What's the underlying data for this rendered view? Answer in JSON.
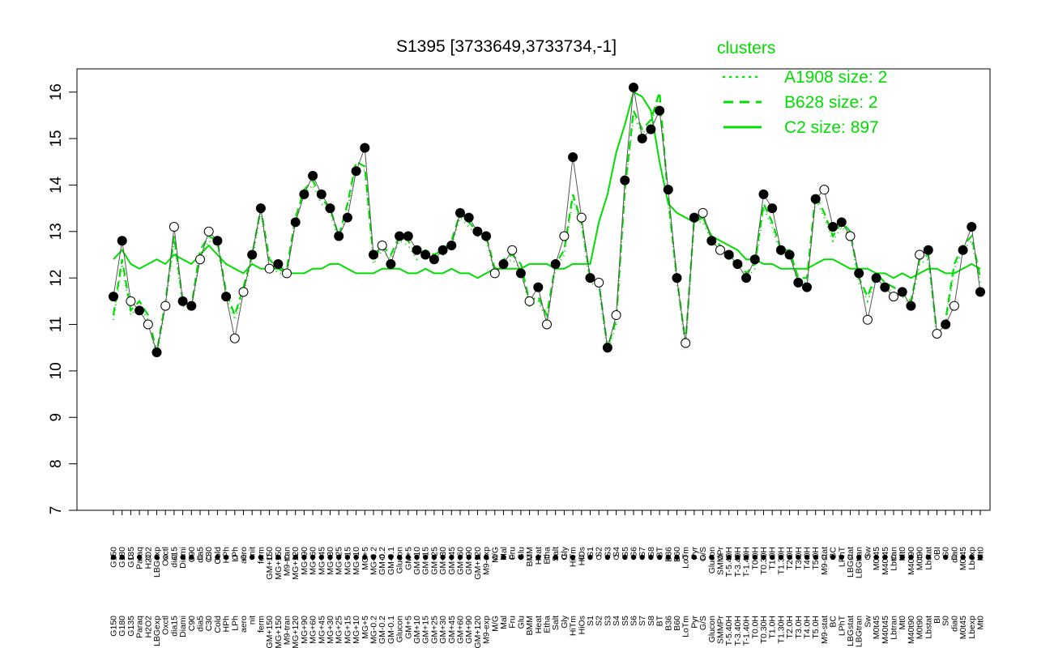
{
  "chart_data": {
    "type": "line",
    "title": "S1395 [3733649,3733734,-1]",
    "xlabel": "",
    "ylabel": "",
    "ylim": [
      7,
      16.5
    ],
    "yticks": [
      7,
      8,
      9,
      10,
      11,
      12,
      13,
      14,
      15,
      16
    ],
    "grid": false,
    "legend": {
      "title": "clusters",
      "placement": "top-right",
      "entries": [
        {
          "label": "A1908 size: 2",
          "style": "dotted",
          "color": "#00dd00"
        },
        {
          "label": "B628 size: 2",
          "style": "dashed",
          "color": "#00dd00"
        },
        {
          "label": "C2 size: 897",
          "style": "solid",
          "color": "#00dd00"
        }
      ]
    },
    "x_tick_labels": [
      "G150",
      "G180",
      "G135",
      "Paraq",
      "H2O2",
      "LBGexp",
      "Oxctl",
      "dia15",
      "Diami",
      "C90",
      "dia5",
      "C30",
      "Cold",
      "HPh",
      "LPh",
      "aero",
      "nit",
      "ferm",
      "GM+150",
      "MG+150",
      "M9-tran",
      "MG+120",
      "MG+90",
      "MG+60",
      "MG+45",
      "MG+30",
      "MG+25",
      "MG+15",
      "MG+10",
      "MG+5",
      "MG-0.2",
      "GM-0.2",
      "GM-0.1",
      "Glucon",
      "GM+5",
      "GM+10",
      "GM+15",
      "GM+25",
      "GM+30",
      "GM+45",
      "GM+60",
      "GM+90",
      "GM+120",
      "M9-exp",
      "M/G",
      "Mal",
      "Fru",
      "Glu",
      "BMM",
      "Heat",
      "Etha",
      "Salt",
      "Gly",
      "HiTm",
      "HiOs",
      "S1",
      "S2",
      "S3",
      "S4",
      "S5",
      "S6",
      "S7",
      "S8",
      "BT",
      "B36",
      "B60",
      "LoTm",
      "Pyr",
      "G/S",
      "Glucon",
      "SMMPr",
      "T-5.40H",
      "T-3.40H",
      "T-1.40H",
      "T0.0H",
      "T0.30H",
      "T1.0H",
      "T1.30H",
      "T2.0H",
      "T3.0H",
      "T4.0H",
      "T5.0H",
      "M9-stat",
      "BC",
      "LPhT",
      "LBGstat",
      "LBGtran",
      "Sw",
      "M0t45",
      "M40t45",
      "Lbtran",
      "Mt0",
      "M40t90",
      "M0t90",
      "Lbstat",
      "BI",
      "S0",
      "dia0",
      "M0t45",
      "Lbexp",
      "Mt0"
    ],
    "series": [
      {
        "name": "C2 size: 897",
        "style": "solid",
        "color": "#00dd00",
        "x": [
          1,
          2,
          3,
          4,
          5,
          6,
          7,
          8,
          9,
          10,
          11,
          12,
          13,
          14,
          15,
          16,
          17,
          18,
          19,
          20,
          21,
          22,
          23,
          24,
          25,
          26,
          27,
          28,
          29,
          30,
          31,
          32,
          33,
          34,
          35,
          36,
          37,
          38,
          39,
          40,
          41,
          42,
          43,
          44,
          45,
          46,
          47,
          48,
          49,
          50,
          51,
          52,
          53,
          54,
          55,
          56,
          57,
          58,
          59,
          60,
          61,
          62,
          63,
          64,
          65,
          66,
          67,
          68,
          69,
          70,
          71,
          72,
          73,
          74,
          75,
          76,
          77,
          78,
          79,
          80,
          81,
          82,
          83,
          84,
          85,
          86,
          87,
          88,
          89,
          90,
          91,
          92,
          93,
          94,
          95,
          96,
          97,
          98,
          99,
          100,
          101
        ],
        "y": [
          12.4,
          12.6,
          12.3,
          12.2,
          12.3,
          12.4,
          12.3,
          12.5,
          12.4,
          12.3,
          12.5,
          12.7,
          12.5,
          12.3,
          12.2,
          12.1,
          12.3,
          12.2,
          12.2,
          12.2,
          12.1,
          12.1,
          12.1,
          12.2,
          12.2,
          12.3,
          12.3,
          12.2,
          12.1,
          12.1,
          12.1,
          12.2,
          12.2,
          12.2,
          12.1,
          12.1,
          12.2,
          12.1,
          12.1,
          12.2,
          12.1,
          12.1,
          12.0,
          12.1,
          12.2,
          12.2,
          12.2,
          12.2,
          12.3,
          12.3,
          12.3,
          12.2,
          12.2,
          12.3,
          12.3,
          12.3,
          13.2,
          13.8,
          14.7,
          15.3,
          16.0,
          15.9,
          15.6,
          14.5,
          13.6,
          13.4,
          13.3,
          13.2,
          13.3,
          12.9,
          12.8,
          12.7,
          12.6,
          12.4,
          12.4,
          12.3,
          12.3,
          12.2,
          12.2,
          12.2,
          12.2,
          12.3,
          12.4,
          12.4,
          12.3,
          12.2,
          12.2,
          12.2,
          12.1,
          12.1,
          12.0,
          12.1,
          12.0,
          12.1,
          12.2,
          12.2,
          12.1,
          12.1,
          12.2,
          12.3,
          12.2
        ]
      },
      {
        "name": "B628 size: 2",
        "style": "dashed",
        "color": "#00dd00",
        "x": [
          1,
          2,
          3,
          4,
          5,
          6,
          7,
          8,
          9,
          10,
          11,
          12,
          13,
          14,
          15,
          16,
          17,
          18,
          19,
          20,
          21,
          22,
          23,
          24,
          25,
          26,
          27,
          28,
          29,
          30,
          31,
          32,
          33,
          34,
          35,
          36,
          37,
          38,
          39,
          40,
          41,
          42,
          43,
          44,
          45,
          46,
          47,
          48,
          49,
          50,
          51,
          52,
          53,
          54,
          55,
          56,
          57,
          58,
          59,
          60,
          61,
          62,
          63,
          64,
          65,
          66,
          67,
          68,
          69,
          70,
          71,
          72,
          73,
          74,
          75,
          76,
          77,
          78,
          79,
          80,
          81,
          82,
          83,
          84,
          85,
          86,
          87,
          88,
          89,
          90,
          91,
          92,
          93,
          94,
          95,
          96,
          97,
          98,
          99,
          100,
          101
        ],
        "y": [
          11.2,
          12.4,
          11.3,
          11.5,
          11.2,
          10.4,
          11.5,
          12.9,
          11.5,
          11.4,
          12.6,
          12.9,
          12.8,
          11.7,
          11.2,
          11.8,
          12.5,
          13.5,
          12.4,
          12.2,
          12.2,
          13.3,
          13.9,
          14.1,
          13.7,
          13.5,
          12.9,
          13.6,
          14.5,
          14.4,
          12.4,
          12.7,
          12.5,
          12.9,
          12.8,
          12.5,
          12.6,
          12.5,
          12.6,
          12.8,
          13.4,
          13.2,
          13.0,
          12.9,
          12.2,
          12.4,
          12.5,
          12.3,
          11.5,
          11.6,
          11.2,
          12.3,
          12.6,
          13.8,
          13.2,
          12.0,
          11.9,
          10.5,
          11.1,
          13.9,
          15.6,
          15.2,
          15.4,
          16.0,
          13.7,
          12.0,
          10.6,
          13.3,
          13.3,
          12.9,
          12.7,
          12.5,
          12.4,
          12.1,
          12.3,
          13.6,
          13.2,
          12.6,
          12.6,
          12.0,
          12.0,
          13.8,
          13.4,
          12.9,
          13.2,
          13.0,
          12.0,
          11.6,
          12.1,
          11.9,
          11.8,
          11.7,
          11.5,
          12.4,
          12.5,
          10.8,
          11.1,
          12.3,
          12.7,
          12.9,
          12.0
        ]
      },
      {
        "name": "A1908 size: 2",
        "style": "dotted",
        "color": "#00dd00",
        "x": [
          1,
          2,
          3,
          4,
          5,
          6,
          7,
          8,
          9,
          10,
          11,
          12,
          13,
          14,
          15,
          16,
          17,
          18,
          19,
          20,
          21,
          22,
          23,
          24,
          25,
          26,
          27,
          28,
          29,
          30,
          31,
          32,
          33,
          34,
          35,
          36,
          37,
          38,
          39,
          40,
          41,
          42,
          43,
          44,
          45,
          46,
          47,
          48,
          49,
          50,
          51,
          52,
          53,
          54,
          55,
          56,
          57,
          58,
          59,
          60,
          61,
          62,
          63,
          64,
          65,
          66,
          67,
          68,
          69,
          70,
          71,
          72,
          73,
          74,
          75,
          76,
          77,
          78,
          79,
          80,
          81,
          82,
          83,
          84,
          85,
          86,
          87,
          88,
          89,
          90,
          91,
          92,
          93,
          94,
          95,
          96,
          97,
          98,
          99,
          100,
          101
        ],
        "y": [
          11.1,
          12.3,
          11.2,
          11.4,
          11.1,
          10.3,
          11.4,
          12.8,
          11.4,
          11.3,
          12.5,
          12.8,
          12.7,
          11.6,
          11.1,
          11.7,
          12.4,
          13.4,
          12.3,
          12.1,
          12.1,
          13.2,
          13.8,
          14.0,
          13.6,
          13.4,
          12.8,
          13.5,
          14.4,
          14.3,
          12.3,
          12.6,
          12.4,
          12.8,
          12.7,
          12.4,
          12.5,
          12.4,
          12.5,
          12.7,
          13.3,
          13.1,
          12.9,
          12.8,
          12.1,
          12.3,
          12.4,
          12.2,
          11.4,
          11.5,
          11.1,
          12.2,
          12.5,
          13.7,
          13.1,
          11.9,
          11.8,
          10.4,
          11.0,
          13.8,
          15.5,
          15.1,
          15.3,
          15.9,
          13.6,
          11.9,
          10.5,
          13.2,
          13.2,
          12.8,
          12.6,
          12.4,
          12.3,
          12.0,
          12.2,
          13.5,
          13.1,
          12.5,
          12.5,
          11.9,
          11.9,
          13.7,
          13.3,
          12.8,
          13.1,
          12.9,
          11.9,
          11.5,
          12.0,
          11.8,
          11.7,
          11.6,
          11.4,
          12.3,
          12.4,
          10.7,
          11.0,
          12.2,
          12.6,
          12.8,
          11.9
        ]
      }
    ],
    "points": {
      "x": [
        1,
        2,
        3,
        4,
        5,
        6,
        7,
        8,
        9,
        10,
        11,
        12,
        13,
        14,
        15,
        16,
        17,
        18,
        19,
        20,
        21,
        22,
        23,
        24,
        25,
        26,
        27,
        28,
        29,
        30,
        31,
        32,
        33,
        34,
        35,
        36,
        37,
        38,
        39,
        40,
        41,
        42,
        43,
        44,
        45,
        46,
        47,
        48,
        49,
        50,
        51,
        52,
        53,
        54,
        55,
        56,
        57,
        58,
        59,
        60,
        61,
        62,
        63,
        64,
        65,
        66,
        67,
        68,
        69,
        70,
        71,
        72,
        73,
        74,
        75,
        76,
        77,
        78,
        79,
        80,
        81,
        82,
        83,
        84,
        85,
        86,
        87,
        88,
        89,
        90,
        91,
        92,
        93,
        94,
        95,
        96,
        97,
        98,
        99,
        100,
        101
      ],
      "y": [
        11.6,
        12.8,
        11.5,
        11.3,
        11.0,
        10.4,
        11.4,
        13.1,
        11.5,
        11.4,
        12.4,
        13.0,
        12.8,
        11.6,
        10.7,
        11.7,
        12.5,
        13.5,
        12.2,
        12.3,
        12.1,
        13.2,
        13.8,
        14.2,
        13.8,
        13.5,
        12.9,
        13.3,
        14.3,
        14.8,
        12.5,
        12.7,
        12.3,
        12.9,
        12.9,
        12.6,
        12.5,
        12.4,
        12.6,
        12.7,
        13.4,
        13.3,
        13.0,
        12.9,
        12.1,
        12.3,
        12.6,
        12.1,
        11.5,
        11.8,
        11.0,
        12.3,
        12.9,
        14.6,
        13.3,
        12.0,
        11.9,
        10.5,
        11.2,
        14.1,
        16.1,
        15.0,
        15.2,
        15.6,
        13.9,
        12.0,
        10.6,
        13.3,
        13.4,
        12.8,
        12.6,
        12.5,
        12.3,
        12.0,
        12.4,
        13.8,
        13.5,
        12.6,
        12.5,
        11.9,
        11.8,
        13.7,
        13.9,
        13.1,
        13.2,
        12.9,
        12.1,
        11.1,
        12.0,
        11.8,
        11.6,
        11.7,
        11.4,
        12.5,
        12.6,
        10.8,
        11.0,
        11.4,
        12.6,
        13.1,
        11.7
      ],
      "filled": [
        true,
        true,
        false,
        true,
        false,
        true,
        false,
        false,
        true,
        true,
        false,
        false,
        true,
        true,
        false,
        false,
        true,
        true,
        false,
        true,
        false,
        true,
        true,
        true,
        true,
        true,
        true,
        true,
        true,
        true,
        true,
        false,
        true,
        true,
        true,
        true,
        true,
        true,
        true,
        true,
        true,
        true,
        true,
        true,
        false,
        true,
        false,
        true,
        false,
        true,
        false,
        true,
        false,
        true,
        false,
        true,
        false,
        true,
        false,
        true,
        true,
        true,
        true,
        true,
        true,
        true,
        false,
        true,
        false,
        true,
        false,
        true,
        true,
        true,
        true,
        true,
        true,
        true,
        true,
        true,
        true,
        true,
        false,
        true,
        true,
        false,
        true,
        false,
        true,
        true,
        false,
        true,
        true,
        false,
        true,
        false,
        true,
        false,
        true,
        true,
        true
      ]
    }
  }
}
